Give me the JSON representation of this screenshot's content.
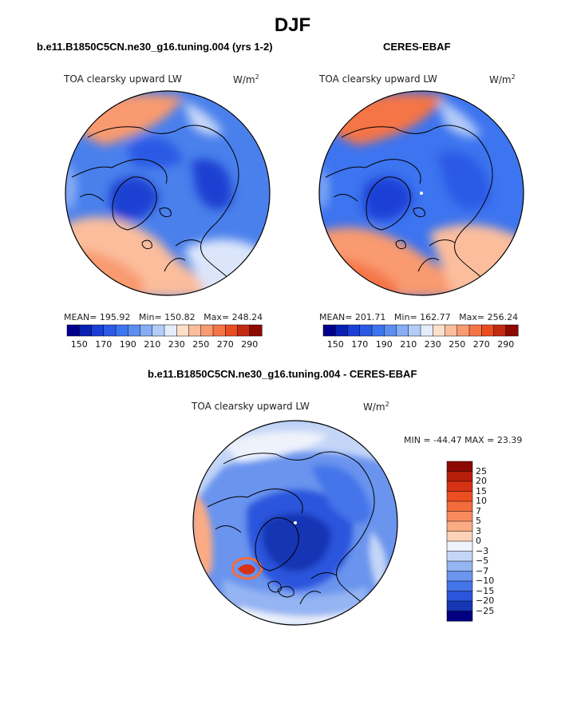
{
  "page": {
    "main_title": "DJF"
  },
  "panels": {
    "model": {
      "title": "b.e11.B1850C5CN.ne30_g16.tuning.004 (yrs 1-2)",
      "variable": "TOA clearsky upward LW",
      "units_base": "W/m",
      "units_exp": "2",
      "stats": {
        "mean_label": "MEAN=",
        "mean": "195.92",
        "min_label": "Min=",
        "min": "150.82",
        "max_label": "Max=",
        "max": "248.24"
      }
    },
    "obs": {
      "title": "CERES-EBAF",
      "variable": "TOA clearsky upward LW",
      "units_base": "W/m",
      "units_exp": "2",
      "stats": {
        "mean_label": "MEAN=",
        "mean": "201.71",
        "min_label": "Min=",
        "min": "162.77",
        "max_label": "Max=",
        "max": "256.24"
      }
    },
    "diff": {
      "title": "b.e11.B1850C5CN.ne30_g16.tuning.004 - CERES-EBAF",
      "variable": "TOA clearsky upward LW",
      "units_base": "W/m",
      "units_exp": "2",
      "stats_text": "MIN = -44.47 MAX =  23.39"
    }
  },
  "chart_data": [
    {
      "type": "heatmap",
      "projection": "north-polar-stereographic",
      "title": "b.e11.B1850C5CN.ne30_g16.tuning.004 (yrs 1-2)",
      "variable": "TOA clearsky upward LW",
      "units": "W/m^2",
      "mean": 195.92,
      "min": 150.82,
      "max": 248.24,
      "colorbar": {
        "orientation": "horizontal",
        "levels": [
          150,
          160,
          170,
          180,
          190,
          200,
          210,
          220,
          230,
          240,
          250,
          260,
          270,
          280,
          290
        ],
        "tick_labels": [
          "150",
          "170",
          "190",
          "210",
          "230",
          "250",
          "270",
          "290"
        ],
        "colors": [
          "#00008c",
          "#0a1fb4",
          "#1a3fd6",
          "#2a5ae6",
          "#3d74ef",
          "#5c8ef2",
          "#86adf5",
          "#b4ccf8",
          "#e4eefb",
          "#fde0cc",
          "#fbbd9c",
          "#f99a70",
          "#f57546",
          "#ea4d22",
          "#c42a10",
          "#8c0a02"
        ]
      }
    },
    {
      "type": "heatmap",
      "projection": "north-polar-stereographic",
      "title": "CERES-EBAF",
      "variable": "TOA clearsky upward LW",
      "units": "W/m^2",
      "mean": 201.71,
      "min": 162.77,
      "max": 256.24,
      "colorbar": {
        "orientation": "horizontal",
        "levels": [
          150,
          160,
          170,
          180,
          190,
          200,
          210,
          220,
          230,
          240,
          250,
          260,
          270,
          280,
          290
        ],
        "tick_labels": [
          "150",
          "170",
          "190",
          "210",
          "230",
          "250",
          "270",
          "290"
        ],
        "colors": [
          "#00008c",
          "#0a1fb4",
          "#1a3fd6",
          "#2a5ae6",
          "#3d74ef",
          "#5c8ef2",
          "#86adf5",
          "#b4ccf8",
          "#e4eefb",
          "#fde0cc",
          "#fbbd9c",
          "#f99a70",
          "#f57546",
          "#ea4d22",
          "#c42a10",
          "#8c0a02"
        ]
      }
    },
    {
      "type": "heatmap",
      "projection": "north-polar-stereographic",
      "title": "b.e11.B1850C5CN.ne30_g16.tuning.004 - CERES-EBAF",
      "variable": "TOA clearsky upward LW",
      "units": "W/m^2",
      "min": -44.47,
      "max": 23.39,
      "colorbar": {
        "orientation": "vertical",
        "levels": [
          25,
          20,
          15,
          10,
          7,
          5,
          3,
          0,
          -3,
          -5,
          -7,
          -10,
          -15,
          -20,
          -25
        ],
        "tick_labels": [
          "25",
          "20",
          "15",
          "10",
          "7",
          "5",
          "3",
          "0",
          "−3",
          "−5",
          "−7",
          "−10",
          "−15",
          "−20",
          "−25"
        ],
        "colors": [
          "#8c0a02",
          "#b61e0a",
          "#d63214",
          "#ec4e22",
          "#f46b3c",
          "#f88a5e",
          "#fbab84",
          "#fdd2b8",
          "#eef2fb",
          "#c4d6f7",
          "#94b4f3",
          "#6a94ee",
          "#4474ea",
          "#2a55dc",
          "#1636b4",
          "#000080"
        ]
      }
    }
  ]
}
